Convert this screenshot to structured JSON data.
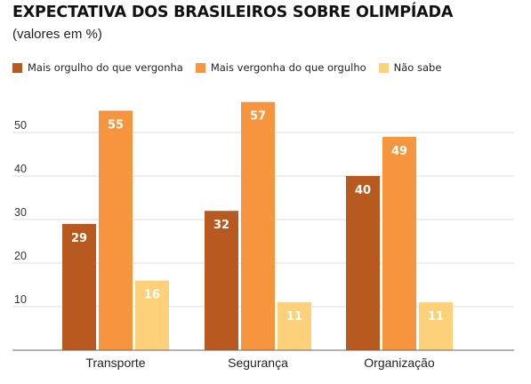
{
  "header": {
    "title": "EXPECTATIVA DOS BRASILEIROS SOBRE OLIMPÍADA",
    "subtitle": "(valores em %)"
  },
  "chart_data": {
    "type": "bar",
    "title": "EXPECTATIVA DOS BRASILEIROS SOBRE OLIMPÍADA",
    "subtitle": "(valores em %)",
    "categories": [
      "Transporte",
      "Segurança",
      "Organização"
    ],
    "series": [
      {
        "name": "Mais orgulho do que vergonha",
        "color": "#b85a1f",
        "values": [
          29,
          32,
          40
        ]
      },
      {
        "name": "Mais vergonha do que orgulho",
        "color": "#f7953f",
        "values": [
          55,
          57,
          49
        ]
      },
      {
        "name": "Não sabe",
        "color": "#fdd07a",
        "values": [
          16,
          11,
          11
        ]
      }
    ],
    "yticks": [
      10,
      20,
      30,
      40,
      50
    ],
    "ylim": [
      0,
      60
    ],
    "xlabel": "",
    "ylabel": "",
    "grid": true,
    "legend_position": "top-left",
    "data_labels": true
  }
}
